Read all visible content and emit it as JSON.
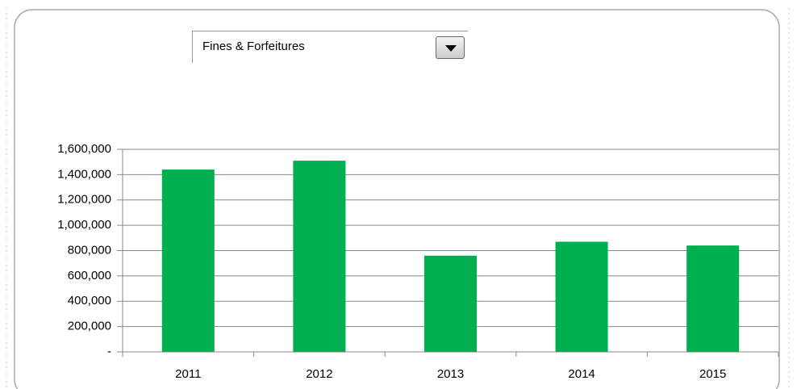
{
  "dropdown": "Fines & Forfeitures",
  "chart_data": {
    "type": "bar",
    "categories": [
      "2011",
      "2012",
      "2013",
      "2014",
      "2015"
    ],
    "values": [
      1440000,
      1510000,
      760000,
      870000,
      840000
    ],
    "color": "#00b050",
    "ylim": [
      0,
      1600000
    ],
    "yticks": [
      {
        "value": 0,
        "label": "-"
      },
      {
        "value": 200000,
        "label": "200,000"
      },
      {
        "value": 400000,
        "label": "400,000"
      },
      {
        "value": 600000,
        "label": "600,000"
      },
      {
        "value": 800000,
        "label": "800,000"
      },
      {
        "value": 1000000,
        "label": "1,000,000"
      },
      {
        "value": 1200000,
        "label": "1,200,000"
      },
      {
        "value": 1400000,
        "label": "1,400,000"
      },
      {
        "value": 1600000,
        "label": "1,600,000"
      }
    ],
    "grid": true
  }
}
